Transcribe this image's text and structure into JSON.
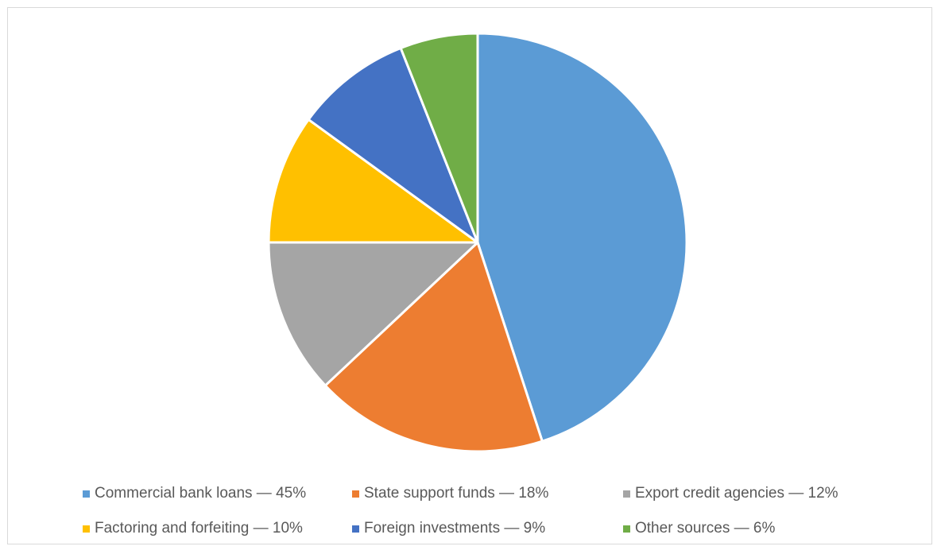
{
  "chart_data": {
    "type": "pie",
    "title": "",
    "categories": [
      "Commercial bank loans",
      "State support funds",
      "Export credit agencies",
      "Factoring and forfeiting",
      "Foreign investments",
      "Other sources"
    ],
    "values": [
      45,
      18,
      12,
      10,
      9,
      6
    ],
    "colors": [
      "#5B9BD5",
      "#ED7D31",
      "#A5A5A5",
      "#FFC000",
      "#4472C4",
      "#70AD47"
    ],
    "legend_position": "bottom",
    "legend": [
      "Commercial bank loans — 45%",
      "State support funds — 18%",
      "Export credit agencies — 12%",
      "Factoring and forfeiting — 10%",
      "Foreign investments — 9%",
      "Other sources — 6%"
    ]
  }
}
